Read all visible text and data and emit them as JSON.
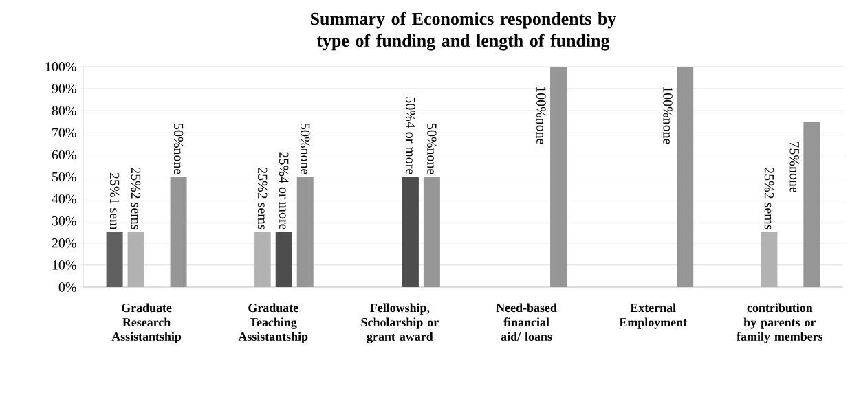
{
  "chart_data": {
    "type": "bar",
    "title": "Summary of Economics respondents by type of funding and length of funding",
    "categories": [
      "Graduate Research Assistantship",
      "Graduate Teaching Assistantship",
      "Fellowship, Scholarship or grant award",
      "Need-based financial aid/ loans",
      "External Employment",
      "contribution by parents or family members"
    ],
    "series": [
      {
        "color": "#5f5f5f",
        "values": [
          25,
          null,
          null,
          null,
          null,
          null
        ],
        "value_labels": [
          "25%1 sem",
          null,
          null,
          null,
          null,
          null
        ]
      },
      {
        "color": "#b2b2b2",
        "values": [
          25,
          25,
          null,
          null,
          null,
          25
        ],
        "value_labels": [
          "25%2 sems",
          "25%2 sems",
          null,
          null,
          null,
          "25%2 sems"
        ]
      },
      {
        "color": "#4d4d4d",
        "values": [
          null,
          25,
          50,
          null,
          null,
          null
        ],
        "value_labels": [
          null,
          "25%4 or more",
          "50%4 or more",
          null,
          null,
          null
        ]
      },
      {
        "color": "#969696",
        "values": [
          50,
          50,
          50,
          100,
          100,
          75
        ],
        "value_labels": [
          "50%none",
          "50%none",
          "50%none",
          "100%none",
          "100%none",
          "75%none"
        ]
      }
    ],
    "ylim": [
      0,
      100
    ],
    "yticks": [
      {
        "value": 0,
        "label": "0%"
      },
      {
        "value": 10,
        "label": "10%"
      },
      {
        "value": 20,
        "label": "20%"
      },
      {
        "value": 30,
        "label": "30%"
      },
      {
        "value": 40,
        "label": "40%"
      },
      {
        "value": 50,
        "label": "50%"
      },
      {
        "value": 60,
        "label": "60%"
      },
      {
        "value": 70,
        "label": "70%"
      },
      {
        "value": 80,
        "label": "80%"
      },
      {
        "value": 90,
        "label": "90%"
      },
      {
        "value": 100,
        "label": "100%"
      }
    ],
    "grid": "y"
  }
}
